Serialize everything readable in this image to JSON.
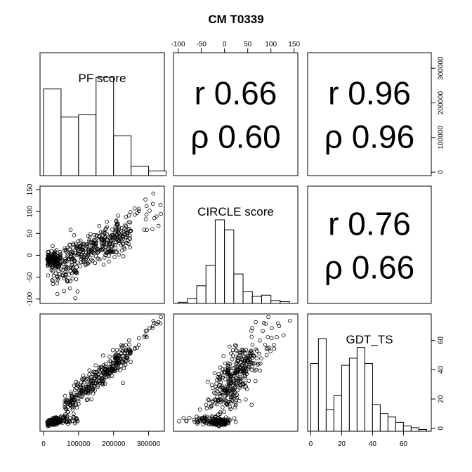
{
  "title": "CM T0339",
  "chart_data": {
    "type": "scatter",
    "title": "CM T0339",
    "variables": [
      "PF score",
      "CIRCLE score",
      "GDT_TS"
    ],
    "ranges": {
      "PF score": [
        -10000,
        345000
      ],
      "CIRCLE score": [
        -110,
        158
      ],
      "GDT_TS": [
        -2,
        78
      ]
    },
    "ticks": {
      "PF score": [
        0,
        100000,
        200000,
        300000
      ],
      "CIRCLE score": [
        -100,
        -50,
        0,
        50,
        100,
        150
      ],
      "GDT_TS": [
        0,
        20,
        40,
        60
      ]
    },
    "correlations": [
      {
        "pair": [
          "PF score",
          "CIRCLE score"
        ],
        "r_label": "r 0.66",
        "rho_label": "ρ 0.60"
      },
      {
        "pair": [
          "PF score",
          "GDT_TS"
        ],
        "r_label": "r 0.96",
        "rho_label": "ρ 0.96"
      },
      {
        "pair": [
          "CIRCLE score",
          "GDT_TS"
        ],
        "r_label": "r 0.76",
        "rho_label": "ρ 0.66"
      }
    ],
    "histograms": {
      "PF score": {
        "breaks": [
          0,
          50000,
          100000,
          150000,
          200000,
          250000,
          300000,
          350000
        ],
        "counts": [
          74,
          50,
          52,
          84,
          34,
          8,
          4
        ]
      },
      "CIRCLE score": {
        "breaks": [
          -100,
          -80,
          -60,
          -40,
          -20,
          0,
          20,
          40,
          60,
          80,
          100,
          120,
          140
        ],
        "counts": [
          2,
          8,
          30,
          65,
          142,
          125,
          50,
          20,
          12,
          14,
          5,
          3
        ]
      },
      "GDT_TS": {
        "breaks": [
          0,
          5,
          10,
          15,
          20,
          25,
          30,
          35,
          40,
          45,
          50,
          55,
          60,
          65,
          70,
          75
        ],
        "counts": [
          38,
          52,
          12,
          20,
          37,
          41,
          47,
          38,
          15,
          10,
          8,
          5,
          3,
          2,
          1
        ]
      }
    },
    "grid": false,
    "legend": "none"
  }
}
